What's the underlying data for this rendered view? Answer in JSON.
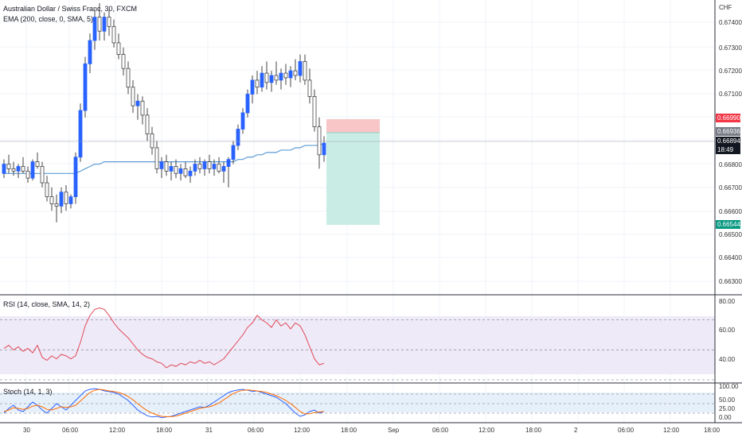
{
  "legend": {
    "symbol": "Australian Dollar / Swiss Franc, 30, FXCM",
    "ema": "EMA (200, close, 0, SMA, 5)",
    "rsi": "RSI (14, close, SMA, 14, 2)",
    "stoch": "Stoch (14, 1, 3)"
  },
  "price_axis": {
    "currency": "CHF",
    "ticks": [
      "0.67400",
      "0.67300",
      "0.67200",
      "0.67100",
      "0.66800",
      "0.66700",
      "0.66600",
      "0.66500",
      "0.66400",
      "0.66300"
    ],
    "tags": {
      "stop": "0.66990",
      "entry": "0.66936",
      "last_price": "0.66894",
      "countdown": "18:49",
      "target": "0.66544"
    }
  },
  "rsi_axis": {
    "ticks": [
      "80.00",
      "60.00",
      "40.00"
    ]
  },
  "stoch_axis": {
    "ticks": [
      "100.00",
      "50.00",
      "25.00",
      "0.00"
    ]
  },
  "time_axis": {
    "ticks": [
      "30",
      "06:00",
      "12:00",
      "18:00",
      "31",
      "06:00",
      "12:00",
      "18:00",
      "Sep",
      "06:00",
      "12:00",
      "18:00",
      "2",
      "06:00",
      "12:00",
      "18:00"
    ]
  },
  "colors": {
    "bull": "#2962ff",
    "bear_fill": "#ffffff",
    "wick": "#444444",
    "ema": "#5b9bd5",
    "rsi": "#e04a58",
    "stoch_k": "#2962ff",
    "stoch_d": "#ff6d00",
    "stop_zone": "#f8c6c6",
    "target_zone": "#c9ece5",
    "stop_tag": "#f23645",
    "entry_tag": "#787b86",
    "price_tag": "#131722",
    "target_tag": "#089981"
  },
  "chart_data": [
    {
      "type": "candlestick",
      "title": "Australian Dollar / Swiss Franc, 30, FXCM",
      "ylim": [
        0.6625,
        0.6749
      ],
      "candles": [
        [
          0.6676,
          0.6682,
          0.6674,
          0.668
        ],
        [
          0.668,
          0.6684,
          0.6676,
          0.6678
        ],
        [
          0.6678,
          0.6681,
          0.6675,
          0.6677
        ],
        [
          0.6677,
          0.668,
          0.6674,
          0.6679
        ],
        [
          0.6679,
          0.6683,
          0.6676,
          0.6677
        ],
        [
          0.6677,
          0.6679,
          0.6672,
          0.6674
        ],
        [
          0.6674,
          0.6682,
          0.6673,
          0.6681
        ],
        [
          0.6681,
          0.6685,
          0.6678,
          0.6679
        ],
        [
          0.6679,
          0.6681,
          0.667,
          0.6672
        ],
        [
          0.6672,
          0.6675,
          0.6664,
          0.6666
        ],
        [
          0.6666,
          0.667,
          0.666,
          0.6663
        ],
        [
          0.6663,
          0.6667,
          0.6655,
          0.6662
        ],
        [
          0.6662,
          0.667,
          0.6659,
          0.6668
        ],
        [
          0.6668,
          0.6671,
          0.666,
          0.6663
        ],
        [
          0.6663,
          0.6667,
          0.6661,
          0.6666
        ],
        [
          0.6666,
          0.6685,
          0.6663,
          0.6683
        ],
        [
          0.6683,
          0.6706,
          0.6681,
          0.6703
        ],
        [
          0.6703,
          0.6726,
          0.67,
          0.6723
        ],
        [
          0.6723,
          0.6736,
          0.6719,
          0.6733
        ],
        [
          0.6733,
          0.6746,
          0.6729,
          0.6743
        ],
        [
          0.6743,
          0.6749,
          0.6733,
          0.6737
        ],
        [
          0.6737,
          0.6745,
          0.6733,
          0.6743
        ],
        [
          0.6743,
          0.6746,
          0.6735,
          0.6739
        ],
        [
          0.6739,
          0.6742,
          0.673,
          0.6732
        ],
        [
          0.6732,
          0.6736,
          0.6725,
          0.6727
        ],
        [
          0.6727,
          0.673,
          0.6718,
          0.6721
        ],
        [
          0.6721,
          0.6724,
          0.671,
          0.6713
        ],
        [
          0.6713,
          0.6716,
          0.6702,
          0.6705
        ],
        [
          0.6705,
          0.671,
          0.6699,
          0.6707
        ],
        [
          0.6707,
          0.6709,
          0.6697,
          0.6701
        ],
        [
          0.6701,
          0.6704,
          0.669,
          0.6693
        ],
        [
          0.6693,
          0.6696,
          0.6684,
          0.6687
        ],
        [
          0.6687,
          0.669,
          0.6676,
          0.6678
        ],
        [
          0.6678,
          0.6683,
          0.6674,
          0.6681
        ],
        [
          0.6681,
          0.6684,
          0.6675,
          0.6677
        ],
        [
          0.6677,
          0.6681,
          0.6673,
          0.6679
        ],
        [
          0.6679,
          0.6682,
          0.6674,
          0.6676
        ],
        [
          0.6676,
          0.668,
          0.6673,
          0.6678
        ],
        [
          0.6678,
          0.6681,
          0.6674,
          0.6675
        ],
        [
          0.6675,
          0.6679,
          0.6672,
          0.6677
        ],
        [
          0.6677,
          0.6682,
          0.6675,
          0.668
        ],
        [
          0.668,
          0.6683,
          0.6676,
          0.6678
        ],
        [
          0.6678,
          0.6682,
          0.6675,
          0.6681
        ],
        [
          0.6681,
          0.6684,
          0.6676,
          0.6678
        ],
        [
          0.6678,
          0.6682,
          0.6675,
          0.668
        ],
        [
          0.668,
          0.6683,
          0.6676,
          0.6677
        ],
        [
          0.6677,
          0.6681,
          0.6672,
          0.6679
        ],
        [
          0.6679,
          0.6683,
          0.667,
          0.6682
        ],
        [
          0.6682,
          0.669,
          0.668,
          0.6688
        ],
        [
          0.6688,
          0.6697,
          0.6686,
          0.6695
        ],
        [
          0.6695,
          0.6704,
          0.6693,
          0.6702
        ],
        [
          0.6702,
          0.6712,
          0.67,
          0.671
        ],
        [
          0.671,
          0.6718,
          0.6706,
          0.6716
        ],
        [
          0.6716,
          0.672,
          0.671,
          0.6713
        ],
        [
          0.6713,
          0.6722,
          0.6711,
          0.6719
        ],
        [
          0.6719,
          0.6724,
          0.6712,
          0.6715
        ],
        [
          0.6715,
          0.672,
          0.6711,
          0.6718
        ],
        [
          0.6718,
          0.6724,
          0.6714,
          0.6716
        ],
        [
          0.6716,
          0.6721,
          0.6712,
          0.6719
        ],
        [
          0.6719,
          0.6723,
          0.6714,
          0.6717
        ],
        [
          0.6717,
          0.6722,
          0.6713,
          0.672
        ],
        [
          0.672,
          0.6725,
          0.6716,
          0.6718
        ],
        [
          0.6718,
          0.6727,
          0.6715,
          0.6724
        ],
        [
          0.6724,
          0.6727,
          0.6714,
          0.6716
        ],
        [
          0.6716,
          0.6721,
          0.6706,
          0.6709
        ],
        [
          0.6709,
          0.6712,
          0.6694,
          0.6696
        ],
        [
          0.6696,
          0.67,
          0.6678,
          0.6684
        ],
        [
          0.6684,
          0.6692,
          0.6681,
          0.6689
        ]
      ],
      "ema": [
        0.6676,
        0.6676,
        0.6676,
        0.6676,
        0.6676,
        0.6676,
        0.6676,
        0.6676,
        0.6676,
        0.6676,
        0.6676,
        0.6676,
        0.6676,
        0.6676,
        0.6676,
        0.6676,
        0.6677,
        0.6678,
        0.6679,
        0.668,
        0.668,
        0.6681,
        0.6681,
        0.6681,
        0.6681,
        0.6681,
        0.6681,
        0.6681,
        0.6681,
        0.6681,
        0.6681,
        0.6681,
        0.6681,
        0.6681,
        0.6681,
        0.6681,
        0.6681,
        0.6681,
        0.6681,
        0.6681,
        0.6681,
        0.6681,
        0.6681,
        0.6681,
        0.6681,
        0.6681,
        0.6681,
        0.6681,
        0.6681,
        0.6682,
        0.6682,
        0.6683,
        0.6683,
        0.6684,
        0.6684,
        0.6685,
        0.6685,
        0.6685,
        0.6686,
        0.6686,
        0.6686,
        0.6687,
        0.6687,
        0.6688,
        0.6688,
        0.6688,
        0.6688,
        0.6689
      ],
      "position": {
        "stop": 0.6699,
        "entry": 0.66936,
        "target": 0.66544
      }
    },
    {
      "type": "line",
      "title": "RSI (14, close, SMA, 14, 2)",
      "ylim": [
        30,
        82
      ],
      "levels": [
        70,
        50,
        30
      ],
      "values": [
        51,
        53,
        50,
        52,
        49,
        51,
        48,
        53,
        45,
        43,
        46,
        44,
        47,
        46,
        44,
        46,
        55,
        66,
        73,
        77,
        78,
        77,
        73,
        68,
        64,
        61,
        58,
        54,
        50,
        47,
        45,
        44,
        42,
        41,
        38,
        40,
        39,
        41,
        40,
        42,
        41,
        43,
        41,
        42,
        40,
        42,
        44,
        48,
        52,
        56,
        60,
        65,
        68,
        73,
        70,
        68,
        65,
        70,
        66,
        68,
        64,
        68,
        66,
        60,
        52,
        44,
        40,
        41
      ]
    },
    {
      "type": "line",
      "title": "Stoch (14, 1, 3)",
      "ylim": [
        -5,
        105
      ],
      "levels": [
        80,
        50,
        20
      ],
      "series": [
        {
          "values": [
            20,
            35,
            45,
            30,
            25,
            40,
            55,
            45,
            30,
            20,
            35,
            50,
            40,
            30,
            45,
            60,
            75,
            90,
            95,
            97,
            95,
            90,
            88,
            85,
            80,
            70,
            60,
            45,
            30,
            20,
            12,
            8,
            10,
            6,
            8,
            10,
            15,
            20,
            25,
            30,
            35,
            40,
            38,
            45,
            55,
            65,
            75,
            85,
            90,
            93,
            95,
            92,
            88,
            90,
            85,
            80,
            75,
            70,
            60,
            50,
            35,
            20,
            10,
            15,
            25,
            30,
            20,
            25
          ]
        },
        {
          "values": [
            25,
            30,
            37,
            35,
            32,
            35,
            42,
            45,
            40,
            32,
            30,
            35,
            40,
            38,
            40,
            45,
            58,
            72,
            85,
            92,
            95,
            93,
            90,
            88,
            85,
            80,
            72,
            62,
            50,
            38,
            28,
            20,
            15,
            10,
            9,
            9,
            11,
            15,
            20,
            25,
            30,
            35,
            38,
            40,
            45,
            52,
            62,
            72,
            82,
            88,
            92,
            93,
            92,
            90,
            88,
            85,
            80,
            75,
            68,
            60,
            50,
            38,
            25,
            18,
            18,
            22,
            24,
            25
          ]
        }
      ]
    }
  ]
}
